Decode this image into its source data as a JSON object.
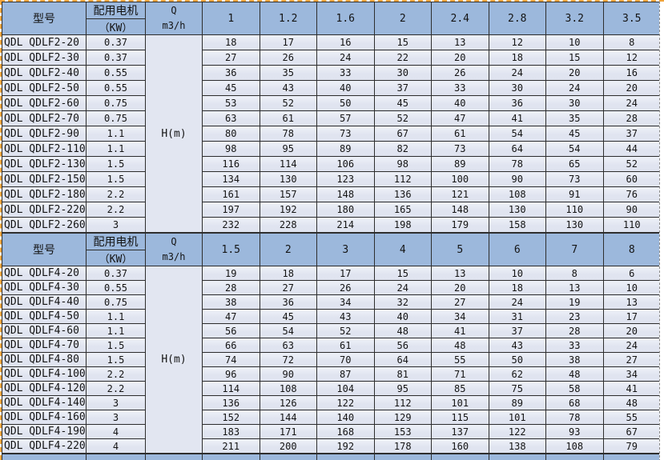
{
  "colors": {
    "header_bg": "#9cb8dc",
    "row_bg": "#e2e6f1",
    "grid_border": "#2e2e2e",
    "selection_dash_orange": "#f0a43c"
  },
  "header_labels": {
    "model": "型号",
    "motor_top": "配用电机",
    "motor_bottom": "（KW）",
    "q_top": "Q",
    "q_bottom": "m3/h"
  },
  "tables": [
    {
      "series": "QDLF2",
      "h_label": "H(m)",
      "flow_columns": [
        "1",
        "1.2",
        "1.6",
        "2",
        "2.4",
        "2.8",
        "3.2",
        "3.5"
      ],
      "rows": [
        {
          "model": "QDL QDLF2-20",
          "kw": "0.37",
          "values": [
            "18",
            "17",
            "16",
            "15",
            "13",
            "12",
            "10",
            "8"
          ]
        },
        {
          "model": "QDL QDLF2-30",
          "kw": "0.37",
          "values": [
            "27",
            "26",
            "24",
            "22",
            "20",
            "18",
            "15",
            "12"
          ]
        },
        {
          "model": "QDL QDLF2-40",
          "kw": "0.55",
          "values": [
            "36",
            "35",
            "33",
            "30",
            "26",
            "24",
            "20",
            "16"
          ]
        },
        {
          "model": "QDL QDLF2-50",
          "kw": "0.55",
          "values": [
            "45",
            "43",
            "40",
            "37",
            "33",
            "30",
            "24",
            "20"
          ]
        },
        {
          "model": "QDL QDLF2-60",
          "kw": "0.75",
          "values": [
            "53",
            "52",
            "50",
            "45",
            "40",
            "36",
            "30",
            "24"
          ]
        },
        {
          "model": "QDL QDLF2-70",
          "kw": "0.75",
          "values": [
            "63",
            "61",
            "57",
            "52",
            "47",
            "41",
            "35",
            "28"
          ]
        },
        {
          "model": "QDL QDLF2-90",
          "kw": "1.1",
          "values": [
            "80",
            "78",
            "73",
            "67",
            "61",
            "54",
            "45",
            "37"
          ]
        },
        {
          "model": "QDL QDLF2-110",
          "kw": "1.1",
          "values": [
            "98",
            "95",
            "89",
            "82",
            "73",
            "64",
            "54",
            "44"
          ]
        },
        {
          "model": "QDL QDLF2-130",
          "kw": "1.5",
          "values": [
            "116",
            "114",
            "106",
            "98",
            "89",
            "78",
            "65",
            "52"
          ]
        },
        {
          "model": "QDL QDLF2-150",
          "kw": "1.5",
          "values": [
            "134",
            "130",
            "123",
            "112",
            "100",
            "90",
            "73",
            "60"
          ]
        },
        {
          "model": "QDL QDLF2-180",
          "kw": "2.2",
          "values": [
            "161",
            "157",
            "148",
            "136",
            "121",
            "108",
            "91",
            "76"
          ]
        },
        {
          "model": "QDL QDLF2-220",
          "kw": "2.2",
          "values": [
            "197",
            "192",
            "180",
            "165",
            "148",
            "130",
            "110",
            "90"
          ]
        },
        {
          "model": "QDL QDLF2-260",
          "kw": "3",
          "values": [
            "232",
            "228",
            "214",
            "198",
            "179",
            "158",
            "130",
            "110"
          ]
        }
      ]
    },
    {
      "series": "QDLF4",
      "h_label": "H(m)",
      "flow_columns": [
        "1.5",
        "2",
        "3",
        "4",
        "5",
        "6",
        "7",
        "8"
      ],
      "rows": [
        {
          "model": "QDL QDLF4-20",
          "kw": "0.37",
          "values": [
            "19",
            "18",
            "17",
            "15",
            "13",
            "10",
            "8",
            "6"
          ]
        },
        {
          "model": "QDL QDLF4-30",
          "kw": "0.55",
          "values": [
            "28",
            "27",
            "26",
            "24",
            "20",
            "18",
            "13",
            "10"
          ]
        },
        {
          "model": "QDL QDLF4-40",
          "kw": "0.75",
          "values": [
            "38",
            "36",
            "34",
            "32",
            "27",
            "24",
            "19",
            "13"
          ]
        },
        {
          "model": "QDL QDLF4-50",
          "kw": "1.1",
          "values": [
            "47",
            "45",
            "43",
            "40",
            "34",
            "31",
            "23",
            "17"
          ]
        },
        {
          "model": "QDL QDLF4-60",
          "kw": "1.1",
          "values": [
            "56",
            "54",
            "52",
            "48",
            "41",
            "37",
            "28",
            "20"
          ]
        },
        {
          "model": "QDL QDLF4-70",
          "kw": "1.5",
          "values": [
            "66",
            "63",
            "61",
            "56",
            "48",
            "43",
            "33",
            "24"
          ]
        },
        {
          "model": "QDL QDLF4-80",
          "kw": "1.5",
          "values": [
            "74",
            "72",
            "70",
            "64",
            "55",
            "50",
            "38",
            "27"
          ]
        },
        {
          "model": "QDL QDLF4-100",
          "kw": "2.2",
          "values": [
            "96",
            "90",
            "87",
            "81",
            "71",
            "62",
            "48",
            "34"
          ]
        },
        {
          "model": "QDL QDLF4-120",
          "kw": "2.2",
          "values": [
            "114",
            "108",
            "104",
            "95",
            "85",
            "75",
            "58",
            "41"
          ]
        },
        {
          "model": "QDL QDLF4-140",
          "kw": "3",
          "values": [
            "136",
            "126",
            "122",
            "112",
            "101",
            "89",
            "68",
            "48"
          ]
        },
        {
          "model": "QDL QDLF4-160",
          "kw": "3",
          "values": [
            "152",
            "144",
            "140",
            "129",
            "115",
            "101",
            "78",
            "55"
          ]
        },
        {
          "model": "QDL QDLF4-190",
          "kw": "4",
          "values": [
            "183",
            "171",
            "168",
            "153",
            "137",
            "122",
            "93",
            "67"
          ]
        },
        {
          "model": "QDL QDLF4-220",
          "kw": "4",
          "values": [
            "211",
            "200",
            "192",
            "178",
            "160",
            "138",
            "108",
            "79"
          ]
        }
      ]
    }
  ]
}
